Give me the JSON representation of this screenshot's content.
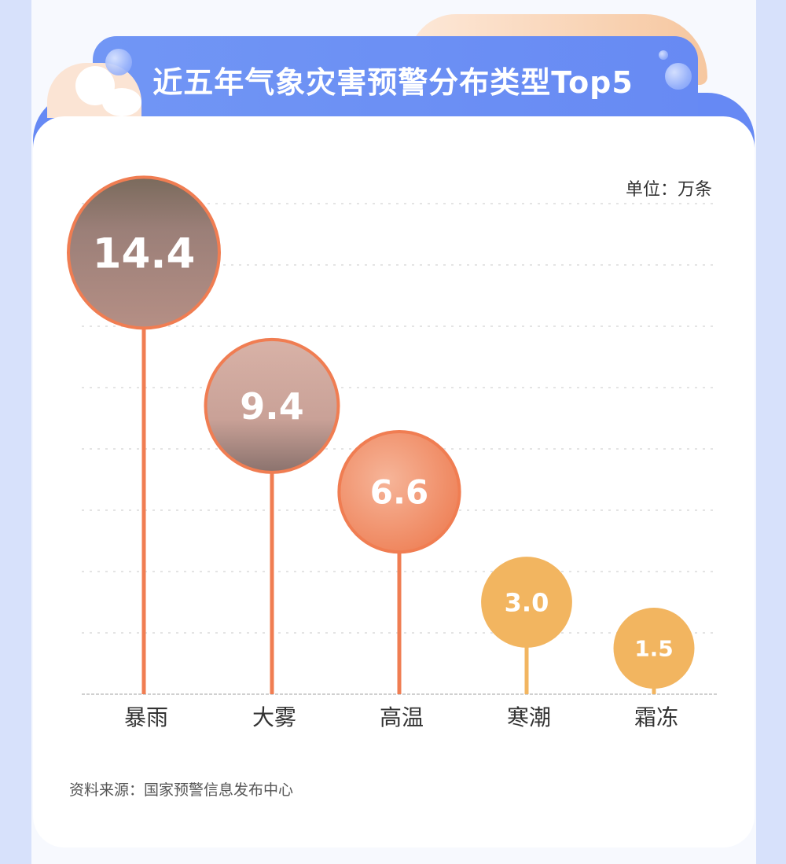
{
  "header": {
    "title": "近五年气象灾害预警分布类型Top5"
  },
  "unit_label": "单位：万条",
  "source": "资料来源：国家预警信息发布中心",
  "colors": {
    "banner": "#6689f4",
    "stem_high": "#f07d52",
    "stem_low": "#f2b560",
    "background": "#d7e1fb"
  },
  "chart_data": {
    "type": "lollipop",
    "title": "近五年气象灾害预警分布类型Top5",
    "unit": "万条",
    "categories": [
      "暴雨",
      "大雾",
      "高温",
      "寒潮",
      "霜冻"
    ],
    "values": [
      14.4,
      9.4,
      6.6,
      3.0,
      1.5
    ],
    "value_labels": [
      "14.4",
      "9.4",
      "6.6",
      "3.0",
      "1.5"
    ],
    "ylim": [
      0,
      16
    ],
    "grid": true,
    "grid_step": 2,
    "marker_fill": [
      "photo-rain",
      "photo-fog",
      "photo-heat",
      "solid",
      "solid"
    ]
  }
}
